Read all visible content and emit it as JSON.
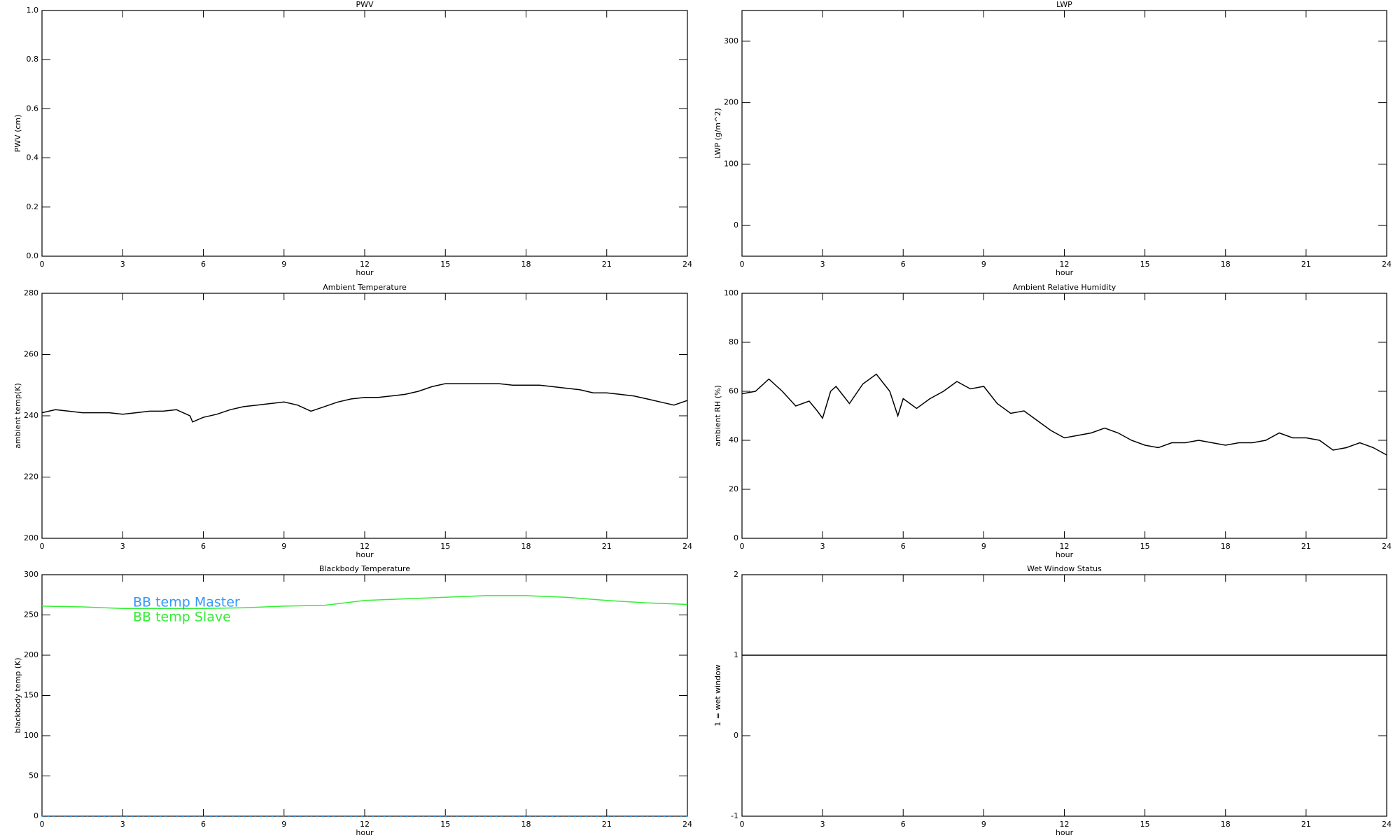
{
  "chart_data": [
    {
      "type": "line",
      "title": "PWV",
      "xlabel": "hour",
      "ylabel": "PWV (cm)",
      "xlim": [
        0,
        24
      ],
      "xticks": [
        0,
        3,
        6,
        9,
        12,
        15,
        18,
        21,
        24
      ],
      "ylim": [
        0,
        1
      ],
      "yticks": [
        {
          "value": 0,
          "label": "0.0"
        },
        0.2,
        0.4,
        0.6,
        0.8,
        {
          "value": 1,
          "label": "1.0"
        }
      ],
      "series": []
    },
    {
      "type": "line",
      "title": "LWP",
      "xlabel": "hour",
      "ylabel": "LWP (g/m^2)",
      "xlim": [
        0,
        24
      ],
      "xticks": [
        0,
        3,
        6,
        9,
        12,
        15,
        18,
        21,
        24
      ],
      "ylim": [
        -50,
        350
      ],
      "yticks": [
        0,
        100,
        200,
        300
      ],
      "series": []
    },
    {
      "type": "line",
      "title": "Ambient Temperature",
      "xlabel": "hour",
      "ylabel": "ambient temp(K)",
      "xlim": [
        0,
        24
      ],
      "xticks": [
        0,
        3,
        6,
        9,
        12,
        15,
        18,
        21,
        24
      ],
      "ylim": [
        200,
        280
      ],
      "yticks": [
        200,
        220,
        240,
        260,
        280
      ],
      "x": [
        0,
        0.5,
        1,
        1.5,
        2,
        2.5,
        3,
        3.5,
        4,
        4.5,
        5,
        5.5,
        5.6,
        6,
        6.5,
        7,
        7.5,
        8,
        8.5,
        9,
        9.5,
        10,
        10.5,
        11,
        11.5,
        12,
        12.5,
        13,
        13.5,
        14,
        14.5,
        15,
        15.5,
        16,
        16.5,
        17,
        17.5,
        18,
        18.5,
        19,
        19.5,
        20,
        20.5,
        21,
        21.5,
        22,
        22.5,
        23,
        23.5,
        24
      ],
      "series": [
        {
          "name": "ambient temp",
          "color": "#000000",
          "values": [
            241,
            242,
            241.5,
            241,
            241,
            241,
            240.5,
            241,
            241.5,
            241.5,
            242,
            240,
            238,
            239.5,
            240.5,
            242,
            243,
            243.5,
            244,
            244.5,
            243.5,
            241.5,
            243,
            244.5,
            245.5,
            246,
            246,
            246.5,
            247,
            248,
            249.5,
            250.5,
            250.5,
            250.5,
            250.5,
            250.5,
            250,
            250,
            250,
            249.5,
            249,
            248.5,
            247.5,
            247.5,
            247,
            246.5,
            245.5,
            244.5,
            243.5,
            245
          ]
        }
      ]
    },
    {
      "type": "line",
      "title": "Ambient Relative Humidity",
      "xlabel": "hour",
      "ylabel": "ambient RH (%)",
      "xlim": [
        0,
        24
      ],
      "xticks": [
        0,
        3,
        6,
        9,
        12,
        15,
        18,
        21,
        24
      ],
      "ylim": [
        0,
        100
      ],
      "yticks": [
        0,
        20,
        40,
        60,
        80,
        100
      ],
      "x": [
        0,
        0.5,
        1,
        1.5,
        2,
        2.5,
        2.8,
        3,
        3.3,
        3.5,
        4,
        4.5,
        5,
        5.5,
        5.8,
        6,
        6.5,
        7,
        7.5,
        8,
        8.5,
        9,
        9.5,
        10,
        10.5,
        11,
        11.5,
        12,
        12.5,
        13,
        13.5,
        14,
        14.5,
        15,
        15.5,
        16,
        16.5,
        17,
        17.5,
        18,
        18.5,
        19,
        19.5,
        20,
        20.5,
        21,
        21.5,
        22,
        22.5,
        23,
        23.5,
        24
      ],
      "series": [
        {
          "name": "ambient RH",
          "color": "#000000",
          "values": [
            59,
            60,
            65,
            60,
            54,
            56,
            52,
            49,
            60,
            62,
            55,
            63,
            67,
            60,
            50,
            57,
            53,
            57,
            60,
            64,
            61,
            62,
            55,
            51,
            52,
            48,
            44,
            41,
            42,
            43,
            45,
            43,
            40,
            38,
            37,
            39,
            39,
            40,
            39,
            38,
            39,
            39,
            40,
            43,
            41,
            41,
            40,
            36,
            37,
            39,
            37,
            34
          ]
        }
      ]
    },
    {
      "type": "line",
      "title": "Blackbody Temperature",
      "xlabel": "hour",
      "ylabel": "blackbody temp (K)",
      "xlim": [
        0,
        24
      ],
      "xticks": [
        0,
        3,
        6,
        9,
        12,
        15,
        18,
        21,
        24
      ],
      "ylim": [
        0,
        300
      ],
      "yticks": [
        0,
        50,
        100,
        150,
        200,
        250,
        300
      ],
      "legend": "upper left",
      "x": [
        0,
        1.5,
        3,
        4.5,
        6,
        7.5,
        9,
        10.5,
        12,
        13.5,
        15,
        16.5,
        18,
        19.5,
        21,
        22.5,
        24
      ],
      "series": [
        {
          "name": "BB temp Master",
          "color": "#3399ff",
          "line_style": "dotted",
          "values": [
            0,
            0,
            0,
            0,
            0,
            0,
            0,
            0,
            0,
            0,
            0,
            0,
            0,
            0,
            0,
            0,
            0
          ]
        },
        {
          "name": "BB temp Slave",
          "color": "#33ee33",
          "line_style": "solid",
          "values": [
            261,
            260,
            258,
            258,
            258,
            259,
            261,
            262,
            268,
            270,
            272,
            274,
            274,
            272,
            268,
            265,
            263
          ]
        }
      ]
    },
    {
      "type": "line",
      "title": "Wet Window Status",
      "xlabel": "hour",
      "ylabel": "1 = wet window",
      "xlim": [
        0,
        24
      ],
      "xticks": [
        0,
        3,
        6,
        9,
        12,
        15,
        18,
        21,
        24
      ],
      "ylim": [
        -1,
        2
      ],
      "yticks": [
        -1,
        0,
        1,
        2
      ],
      "x": [
        0,
        24
      ],
      "series": [
        {
          "name": "wet window",
          "color": "#000000",
          "values": [
            1,
            1
          ]
        }
      ]
    }
  ]
}
